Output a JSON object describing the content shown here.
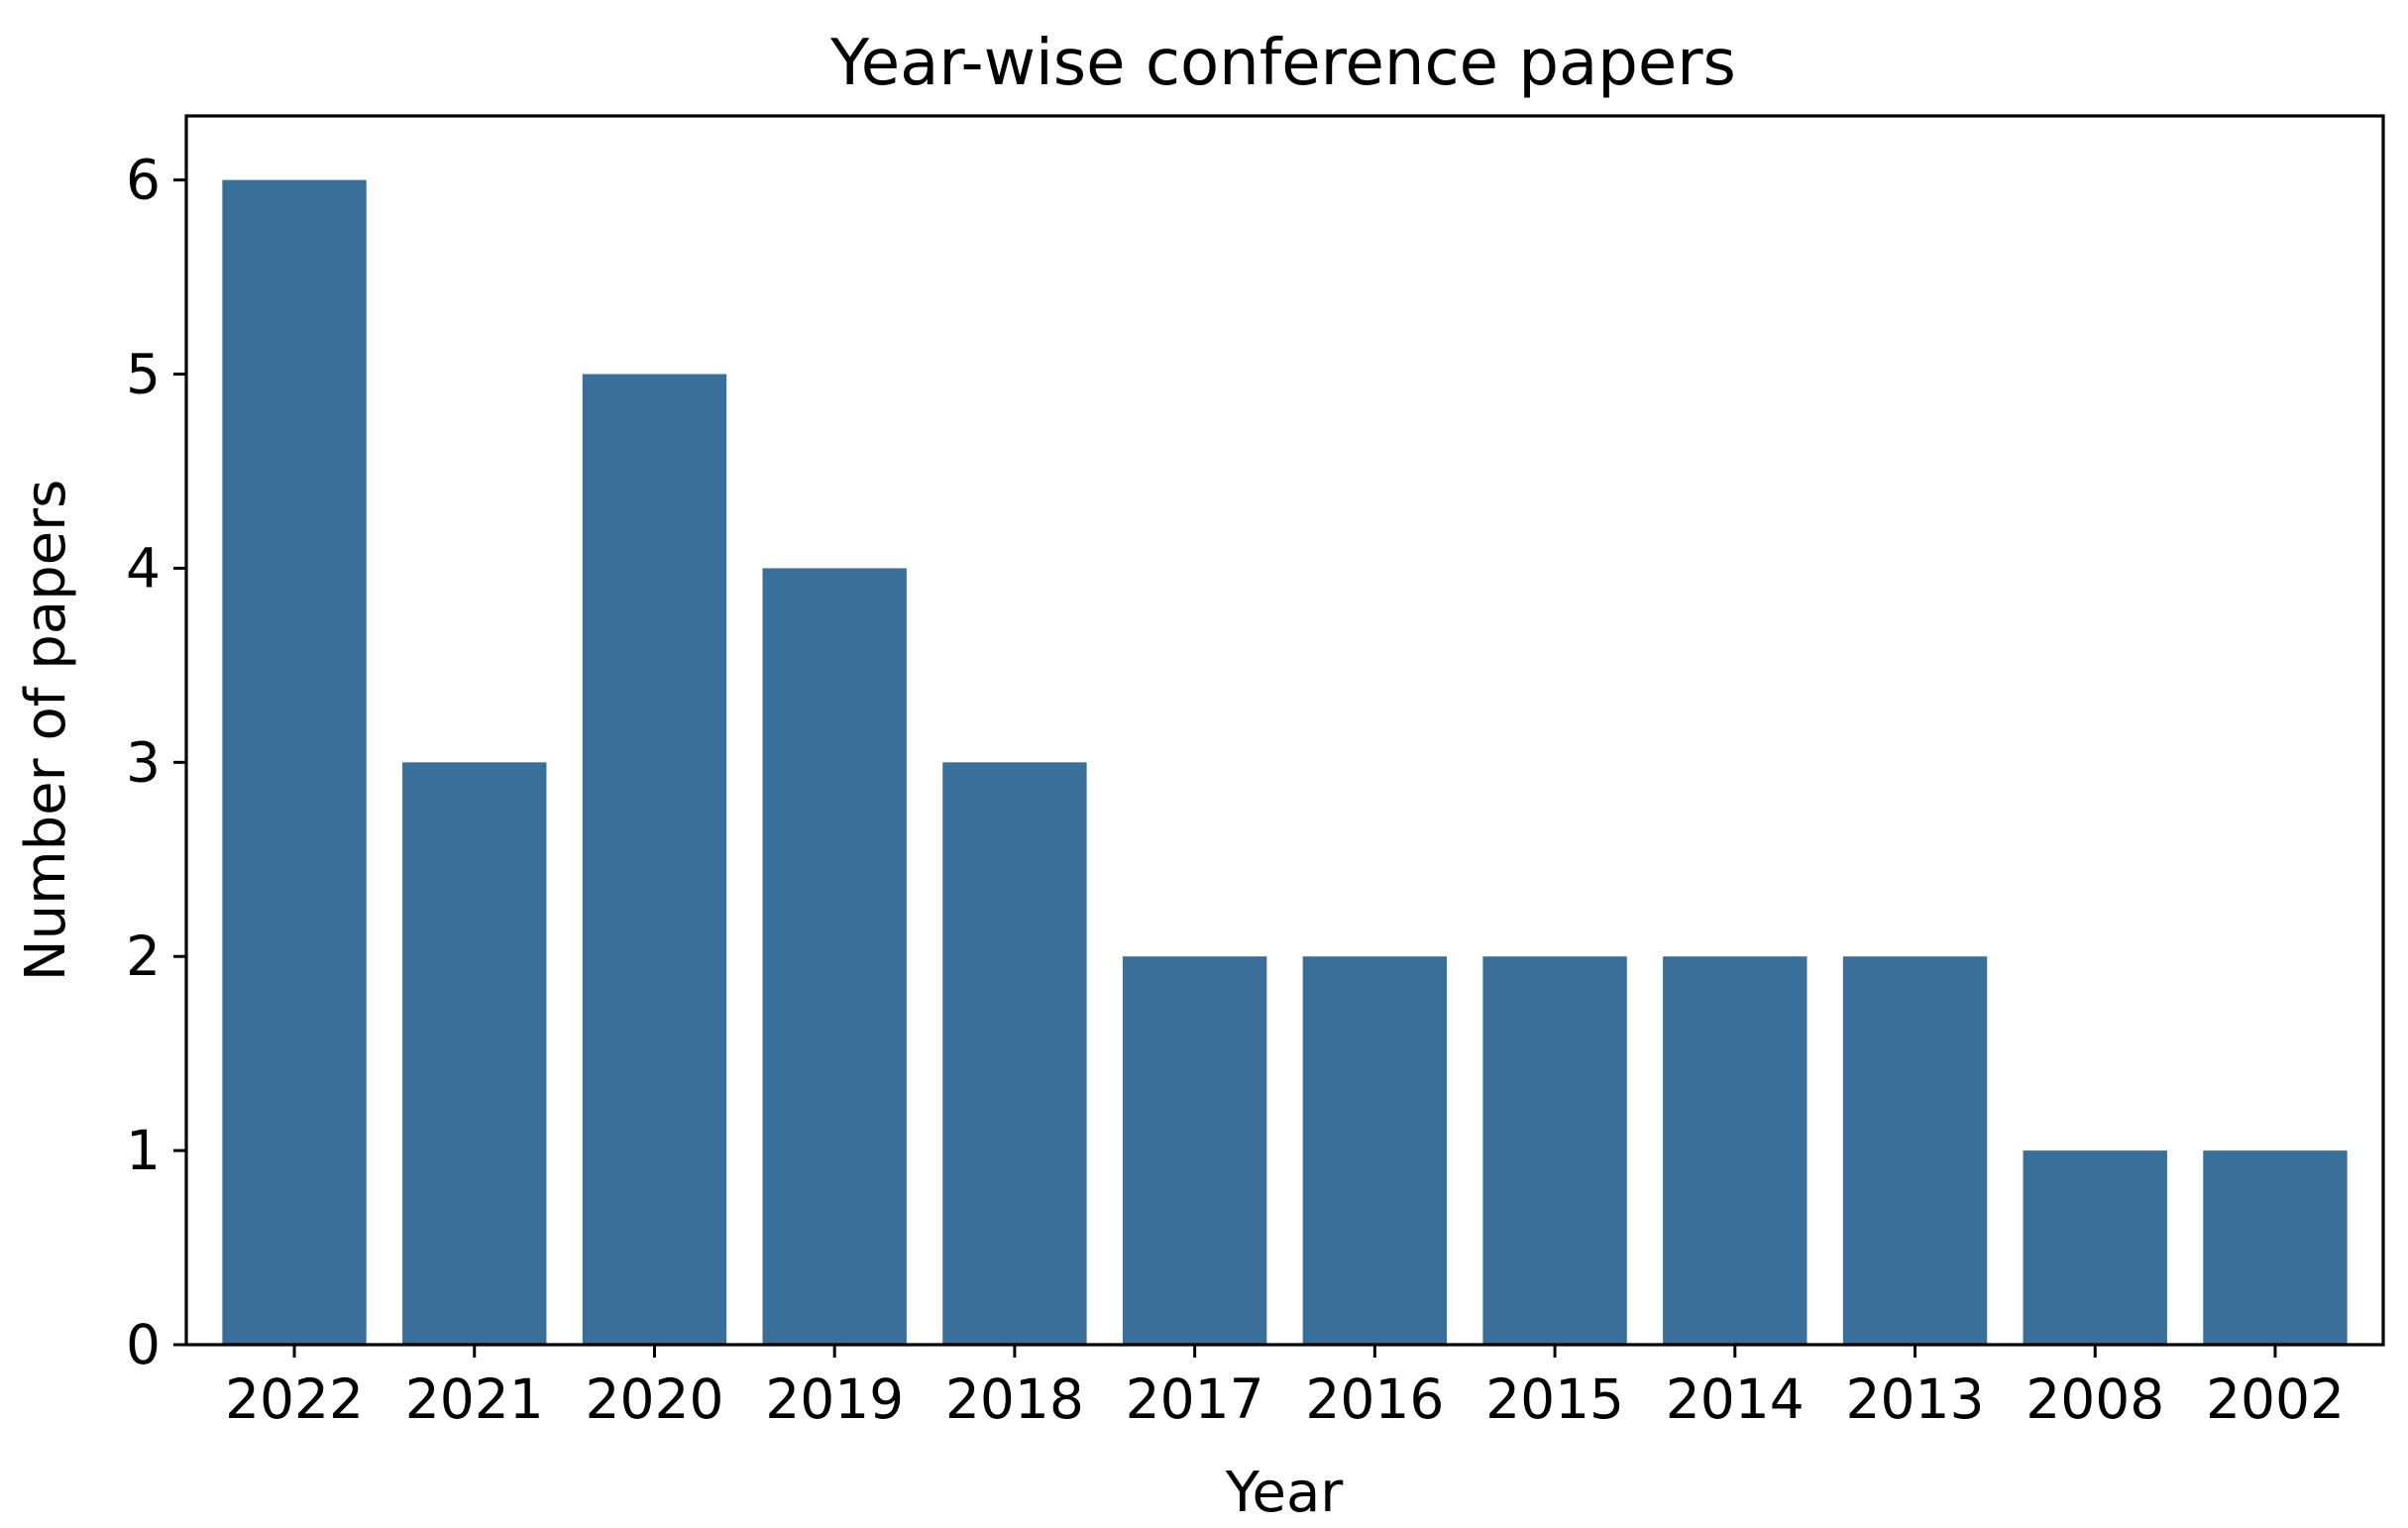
{
  "chart_data": {
    "type": "bar",
    "title": "Year-wise conference papers",
    "xlabel": "Year",
    "ylabel": "Number of papers",
    "categories": [
      "2022",
      "2021",
      "2020",
      "2019",
      "2018",
      "2017",
      "2016",
      "2015",
      "2014",
      "2013",
      "2008",
      "2002"
    ],
    "values": [
      6,
      3,
      5,
      4,
      3,
      2,
      2,
      2,
      2,
      2,
      1,
      1
    ],
    "ylim": [
      0,
      6.33
    ],
    "yticks": [
      0,
      1,
      2,
      3,
      4,
      5,
      6
    ],
    "bar_color": "#3a6f99",
    "grid": false,
    "legend": "none"
  }
}
